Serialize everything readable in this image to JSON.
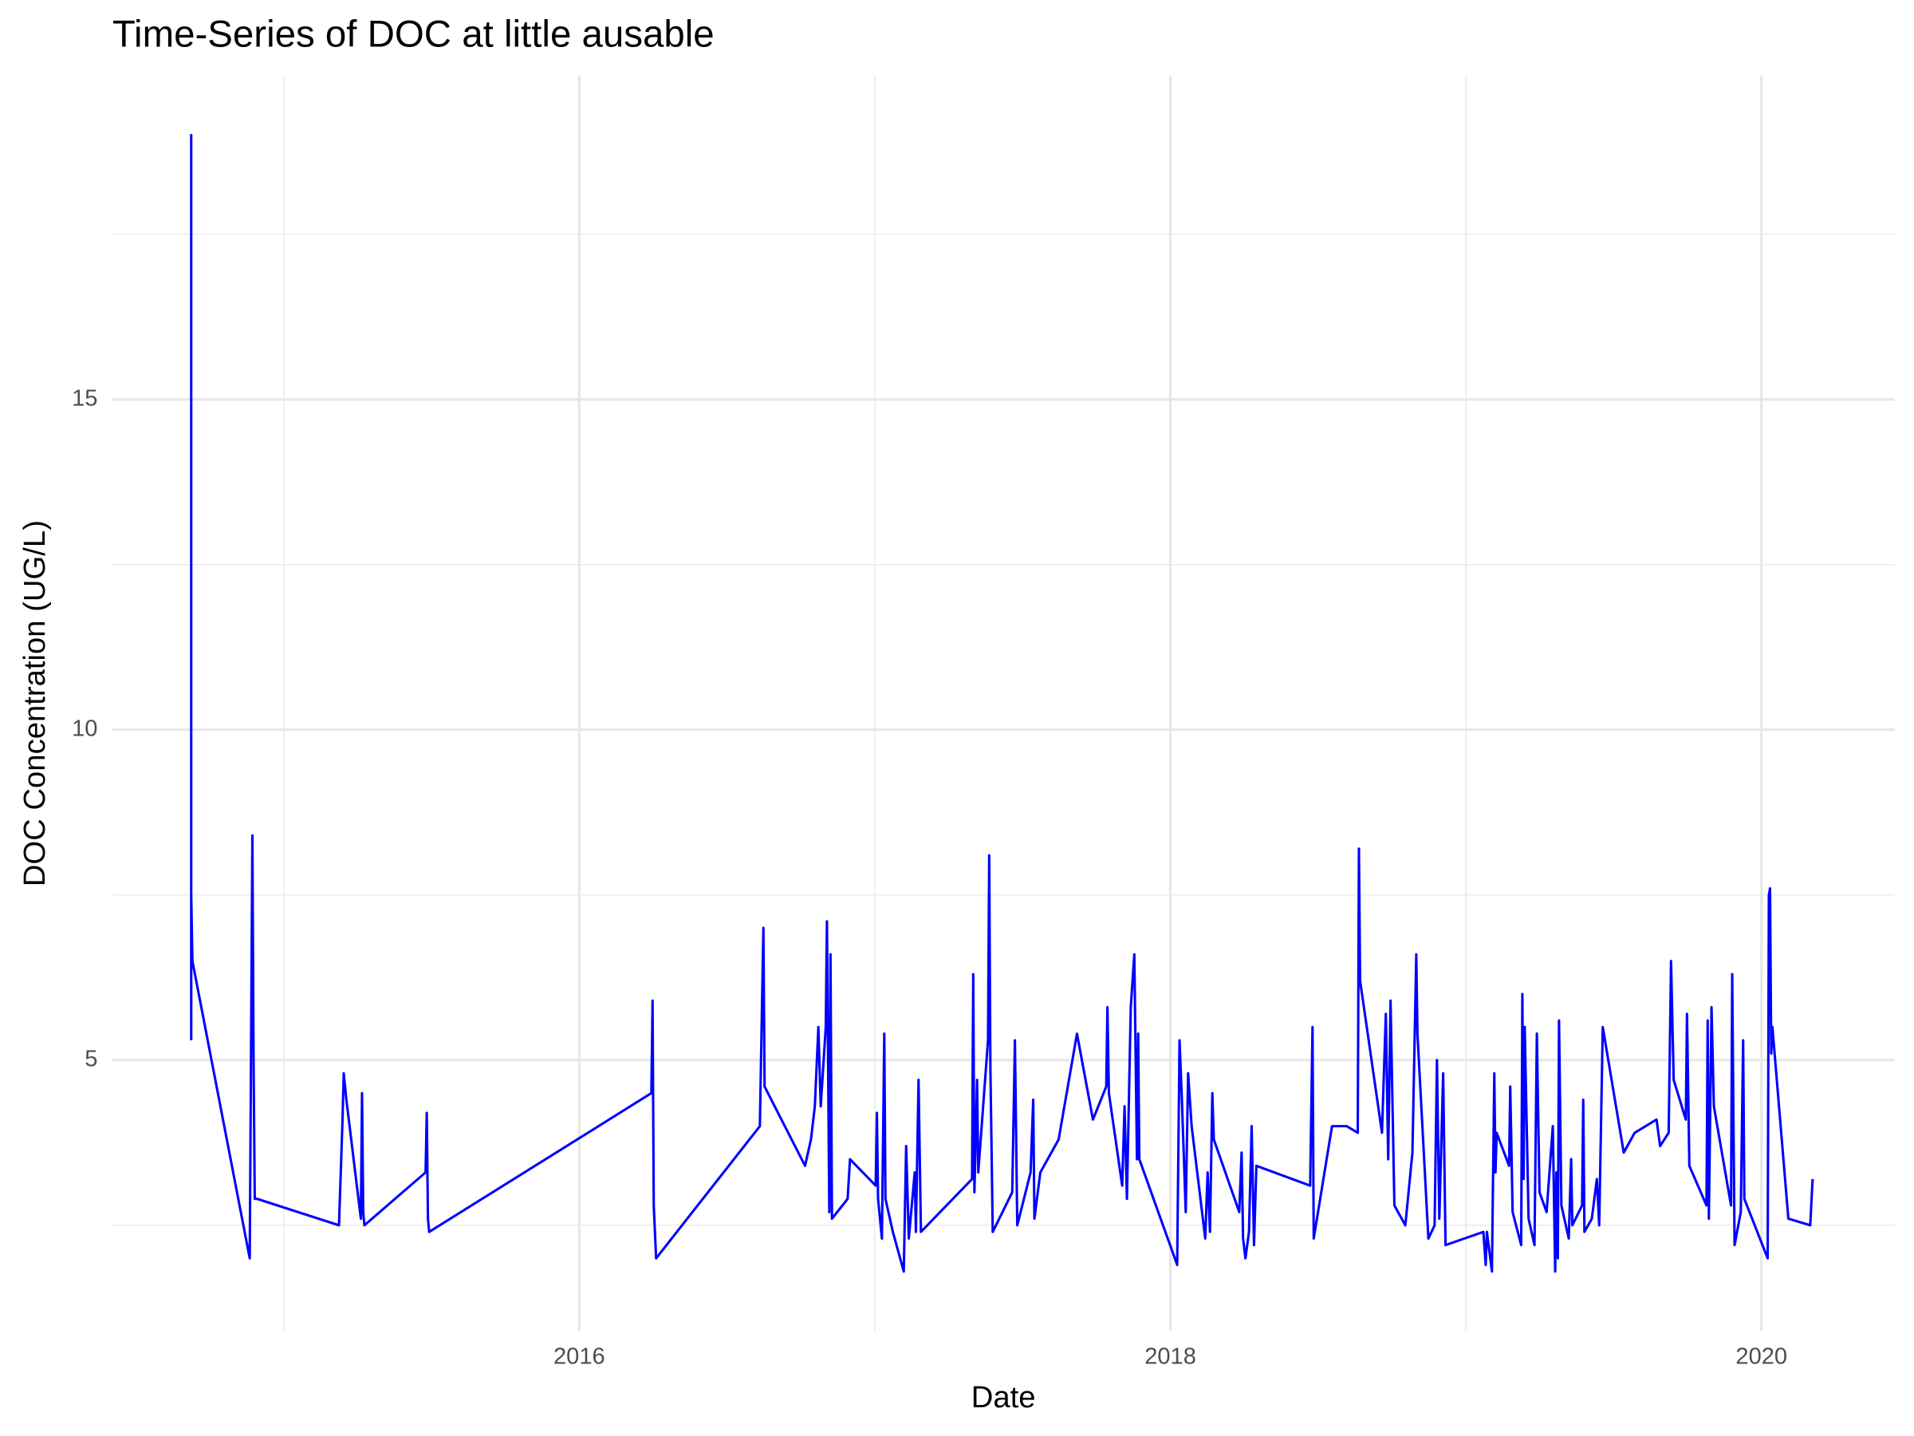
{
  "chart_data": {
    "type": "line",
    "title": "Time-Series of DOC at little ausable",
    "x_label": "Date",
    "y_label": "DOC Concentration (UG/L)",
    "xlim": [
      2014.42,
      2020.45
    ],
    "ylim": [
      0.9,
      19.9
    ],
    "xticks": [
      2016,
      2018,
      2020
    ],
    "yticks": [
      5,
      10,
      15
    ],
    "x_minor_grid": [
      2015,
      2017,
      2019
    ],
    "y_minor_grid": [
      2.5,
      7.5,
      12.5,
      17.5
    ],
    "grid": true,
    "x": [
      2014.687,
      2014.687,
      2014.687,
      2014.691,
      2014.885,
      2014.894,
      2014.898,
      2014.902,
      2014.91,
      2015.187,
      2015.199,
      2015.203,
      2015.212,
      2015.261,
      2015.265,
      2015.269,
      2015.273,
      2015.48,
      2015.484,
      2015.488,
      2015.492,
      2016.244,
      2016.248,
      2016.252,
      2016.26,
      2016.611,
      2016.623,
      2016.627,
      2016.764,
      2016.784,
      2016.797,
      2016.809,
      2016.817,
      2016.834,
      2016.838,
      2016.846,
      2016.85,
      2016.855,
      2016.908,
      2016.916,
      2017.003,
      2017.007,
      2017.011,
      2017.024,
      2017.032,
      2017.036,
      2017.061,
      2017.098,
      2017.106,
      2017.115,
      2017.135,
      2017.139,
      2017.148,
      2017.156,
      2017.329,
      2017.333,
      2017.337,
      2017.346,
      2017.35,
      2017.383,
      2017.387,
      2017.391,
      2017.399,
      2017.465,
      2017.474,
      2017.482,
      2017.527,
      2017.536,
      2017.54,
      2017.56,
      2017.622,
      2017.684,
      2017.738,
      2017.783,
      2017.787,
      2017.792,
      2017.837,
      2017.845,
      2017.853,
      2017.866,
      2017.878,
      2017.887,
      2017.891,
      2017.895,
      2018.023,
      2018.031,
      2018.039,
      2018.052,
      2018.06,
      2018.072,
      2018.118,
      2018.126,
      2018.134,
      2018.142,
      2018.147,
      2018.233,
      2018.241,
      2018.246,
      2018.254,
      2018.266,
      2018.275,
      2018.283,
      2018.291,
      2018.473,
      2018.481,
      2018.485,
      2018.547,
      2018.597,
      2018.634,
      2018.638,
      2018.642,
      2018.716,
      2018.729,
      2018.737,
      2018.745,
      2018.758,
      2018.795,
      2018.819,
      2018.832,
      2018.836,
      2018.873,
      2018.894,
      2018.902,
      2018.91,
      2018.923,
      2018.931,
      2019.059,
      2019.067,
      2019.071,
      2019.088,
      2019.096,
      2019.1,
      2019.104,
      2019.146,
      2019.15,
      2019.158,
      2019.187,
      2019.191,
      2019.195,
      2019.199,
      2019.212,
      2019.232,
      2019.24,
      2019.249,
      2019.273,
      2019.294,
      2019.302,
      2019.306,
      2019.311,
      2019.315,
      2019.323,
      2019.348,
      2019.356,
      2019.36,
      2019.393,
      2019.397,
      2019.401,
      2019.426,
      2019.443,
      2019.451,
      2019.463,
      2019.534,
      2019.571,
      2019.645,
      2019.657,
      2019.686,
      2019.694,
      2019.703,
      2019.744,
      2019.748,
      2019.756,
      2019.814,
      2019.818,
      2019.822,
      2019.831,
      2019.839,
      2019.897,
      2019.901,
      2019.909,
      2019.93,
      2019.938,
      2019.942,
      2020.021,
      2020.025,
      2020.029,
      2020.033,
      2020.037,
      2020.091,
      2020.165,
      2020.173
    ],
    "series": [
      {
        "name": "DOC",
        "color": "#0000ff",
        "values": [
          5.3,
          19,
          7.5,
          6.5,
          2.0,
          8.4,
          5,
          2.9,
          2.9,
          2.5,
          4.1,
          4.8,
          4.4,
          2.6,
          4.5,
          2.7,
          2.5,
          3.3,
          4.2,
          2.6,
          2.4,
          4.5,
          5.9,
          2.8,
          2.0,
          4.0,
          7.0,
          4.6,
          3.4,
          3.8,
          4.3,
          5.5,
          4.3,
          5.5,
          7.1,
          2.7,
          6.6,
          2.6,
          2.9,
          3.5,
          3.1,
          4.2,
          2.9,
          2.3,
          5.4,
          2.9,
          2.4,
          1.8,
          3.7,
          2.3,
          3.3,
          2.4,
          4.7,
          2.4,
          3.2,
          6.3,
          3.0,
          4.7,
          3.3,
          5.3,
          8.1,
          4.9,
          2.4,
          3.0,
          5.3,
          2.5,
          3.3,
          4.4,
          2.6,
          3.3,
          3.8,
          5.4,
          4.1,
          4.6,
          5.8,
          4.5,
          3.1,
          4.3,
          2.9,
          5.8,
          6.6,
          3.5,
          5.4,
          3.5,
          1.9,
          5.3,
          4.4,
          2.7,
          4.8,
          4.0,
          2.3,
          3.3,
          2.4,
          4.5,
          3.8,
          2.7,
          3.6,
          2.3,
          2.0,
          2.4,
          4.0,
          2.2,
          3.4,
          3.1,
          5.5,
          2.3,
          4.0,
          4.0,
          3.9,
          8.2,
          6.2,
          3.9,
          5.7,
          3.5,
          5.9,
          2.8,
          2.5,
          3.6,
          6.6,
          5.4,
          2.3,
          2.5,
          5.0,
          2.6,
          4.8,
          2.2,
          2.4,
          1.9,
          2.4,
          1.8,
          4.8,
          3.3,
          3.9,
          3.4,
          4.6,
          2.7,
          2.2,
          6.0,
          3.2,
          5.5,
          2.6,
          2.2,
          5.4,
          3.0,
          2.7,
          4.0,
          1.8,
          3.3,
          2.0,
          5.6,
          2.8,
          2.3,
          3.5,
          2.5,
          2.8,
          4.4,
          2.4,
          2.6,
          3.2,
          2.5,
          5.5,
          3.6,
          3.9,
          4.1,
          3.7,
          3.9,
          6.5,
          4.7,
          4.1,
          5.7,
          3.4,
          2.8,
          5.6,
          2.6,
          5.8,
          4.3,
          2.8,
          6.3,
          2.2,
          2.7,
          5.3,
          2.9,
          2.0,
          7.5,
          7.6,
          5.1,
          5.5,
          2.6,
          2.5,
          3.2
        ]
      }
    ]
  }
}
